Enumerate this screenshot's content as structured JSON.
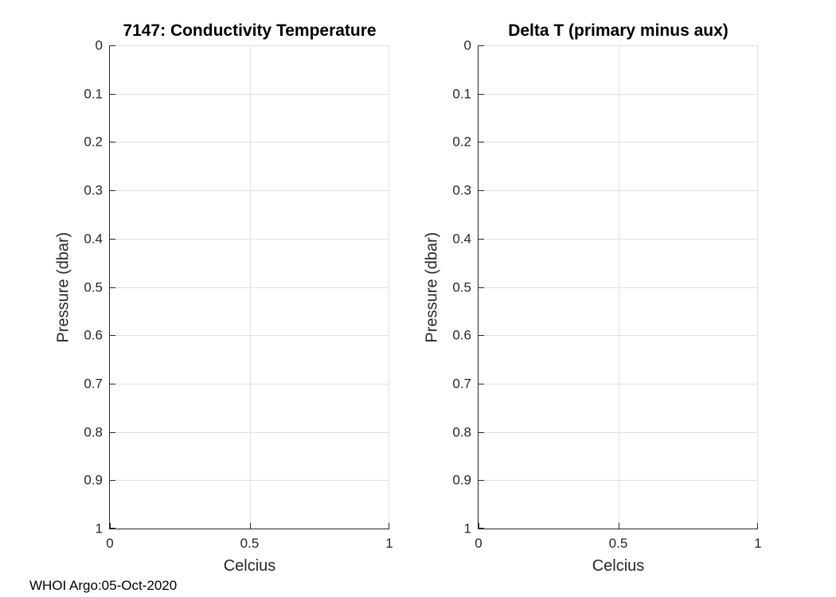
{
  "figure": {
    "footer_text": "WHOI Argo:05-Oct-2020"
  },
  "colors": {
    "axis": "#262626",
    "grid": "#e0e0e0",
    "title_text": "#000000",
    "background": "#ffffff"
  },
  "chart_data": [
    {
      "type": "line",
      "title": "7147: Conductivity Temperature",
      "xlabel": "Celcius",
      "ylabel": "Pressure (dbar)",
      "xlim": [
        0,
        1
      ],
      "ylim": [
        0,
        1
      ],
      "y_axis_reversed": true,
      "grid": true,
      "xtick_labels": [
        "0",
        "0.5",
        "1"
      ],
      "ytick_labels": [
        "0",
        "0.1",
        "0.2",
        "0.3",
        "0.4",
        "0.5",
        "0.6",
        "0.7",
        "0.8",
        "0.9",
        "1"
      ],
      "series": []
    },
    {
      "type": "line",
      "title": "Delta T (primary minus aux)",
      "xlabel": "Celcius",
      "ylabel": "Pressure (dbar)",
      "xlim": [
        0,
        1
      ],
      "ylim": [
        0,
        1
      ],
      "y_axis_reversed": true,
      "grid": true,
      "xtick_labels": [
        "0",
        "0.5",
        "1"
      ],
      "ytick_labels": [
        "0",
        "0.1",
        "0.2",
        "0.3",
        "0.4",
        "0.5",
        "0.6",
        "0.7",
        "0.8",
        "0.9",
        "1"
      ],
      "series": []
    }
  ]
}
